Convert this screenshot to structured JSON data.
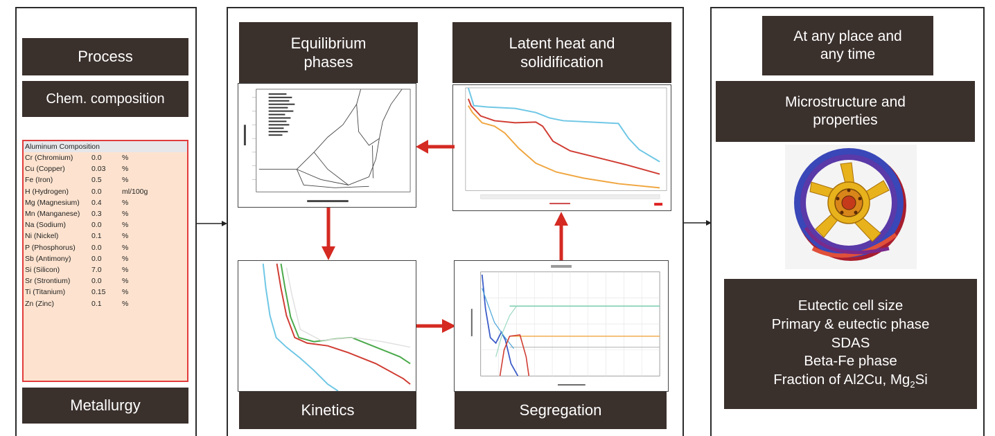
{
  "left": {
    "process": "Process",
    "chem": "Chem. composition",
    "table_title": "Aluminum Composition",
    "rows": [
      {
        "element": "Cr (Chromium)",
        "value": "0.0",
        "unit": "%"
      },
      {
        "element": "Cu (Copper)",
        "value": "0.03",
        "unit": "%"
      },
      {
        "element": "Fe (Iron)",
        "value": "0.5",
        "unit": "%"
      },
      {
        "element": "H (Hydrogen)",
        "value": "0.0",
        "unit": "ml/100g"
      },
      {
        "element": "Mg (Magnesium)",
        "value": "0.4",
        "unit": "%"
      },
      {
        "element": "Mn (Manganese)",
        "value": "0.3",
        "unit": "%"
      },
      {
        "element": "Na (Sodium)",
        "value": "0.0",
        "unit": "%"
      },
      {
        "element": "Ni (Nickel)",
        "value": "0.1",
        "unit": "%"
      },
      {
        "element": "P (Phosphorus)",
        "value": "0.0",
        "unit": "%"
      },
      {
        "element": "Sb (Antimony)",
        "value": "0.0",
        "unit": "%"
      },
      {
        "element": "Si (Silicon)",
        "value": "7.0",
        "unit": "%"
      },
      {
        "element": "Sr (Strontium)",
        "value": "0.0",
        "unit": "%"
      },
      {
        "element": "Ti (Titanium)",
        "value": "0.15",
        "unit": "%"
      },
      {
        "element": "Zn (Zinc)",
        "value": "0.1",
        "unit": "%"
      }
    ],
    "metallurgy": "Metallurgy"
  },
  "middle": {
    "equilibrium_1": "Equilibrium",
    "equilibrium_2": "phases",
    "latent_1": "Latent heat and",
    "latent_2": "solidification",
    "kinetics": "Kinetics",
    "segregation": "Segregation"
  },
  "right": {
    "anyplace_1": "At any place and",
    "anyplace_2": "any time",
    "micro_1": "Microstructure and",
    "micro_2": "properties",
    "props": {
      "l1": "Eutectic cell size",
      "l2": "Primary & eutectic phase",
      "l3": "SDAS",
      "l4": "Beta-Fe phase",
      "l5_prefix": "Fraction of Al2Cu, Mg",
      "l5_sub": "2",
      "l5_suffix": "Si"
    }
  },
  "colors": {
    "box": "#3a302c",
    "arrow": "#d42a22",
    "table_bg": "#fde3cf",
    "table_border": "#e23b3b"
  }
}
